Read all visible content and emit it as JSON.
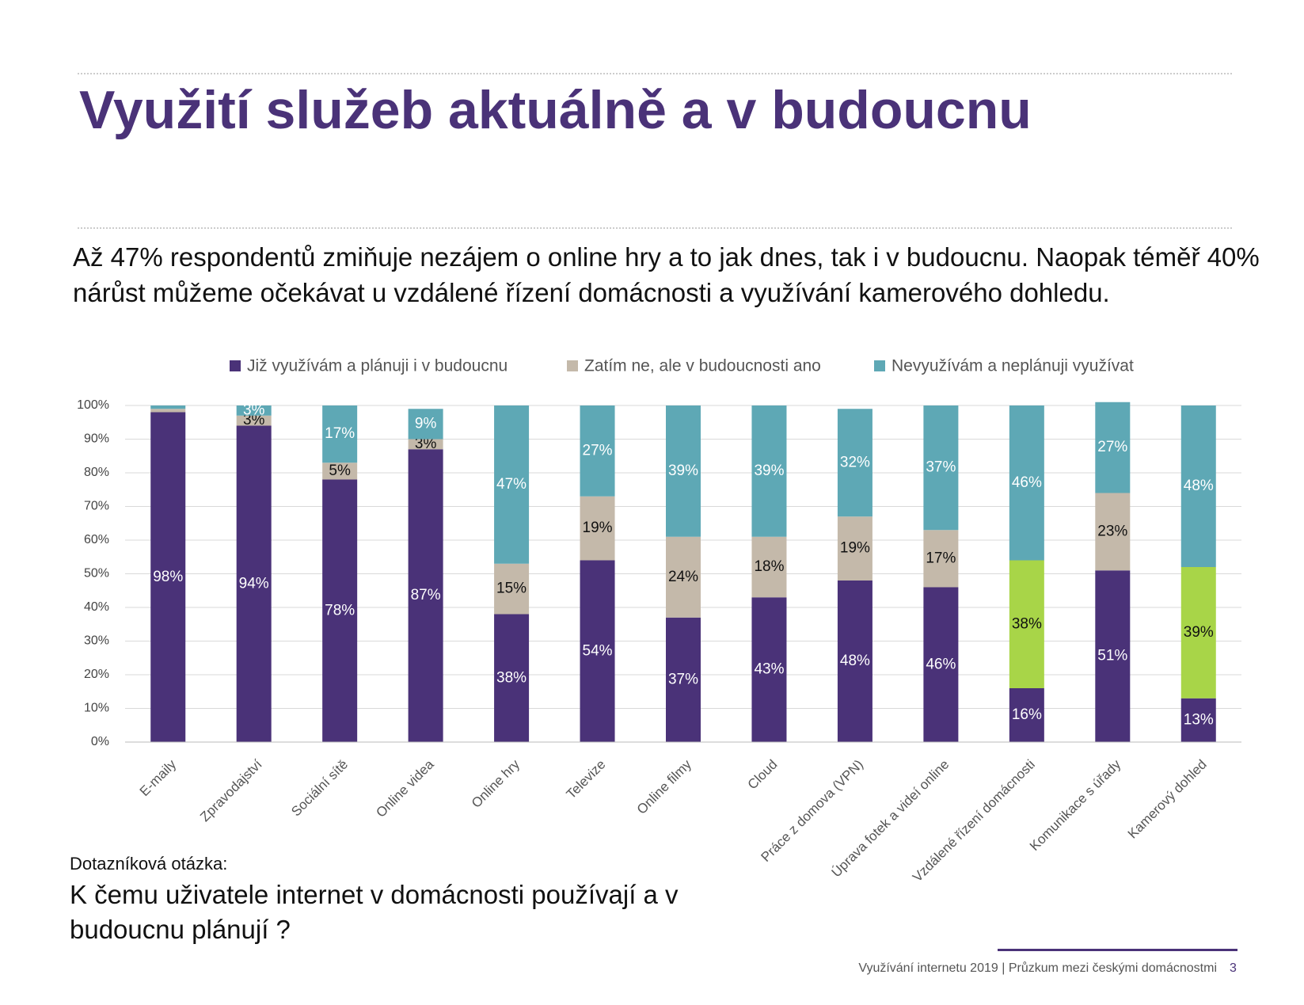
{
  "chart_data": {
    "type": "stacked_bar",
    "title": "Využití služeb aktuálně a v budoucnu",
    "subtitle": "Až 47% respondentů zmiňuje nezájem o online hry a to jak dnes, tak i v budoucnu. Naopak téměř 40% nárůst můžeme očekávat u vzdálené řízení domácnosti a využívání kamerového dohledu.",
    "question_label": "Dotazníková otázka:",
    "question": "K čemu uživatele internet v domácnosti používají a v budoucnu plánují ?",
    "footer": "Využívání internetu 2019 | Průzkum mezi českými domácnostmi",
    "page_number": "3",
    "categories": [
      "E-maily",
      "Zpravodajství",
      "Sociální sítě",
      "Online videa",
      "Online hry",
      "Televize",
      "Online filmy",
      "Cloud",
      "Práce z domova (VPN)",
      "Úprava fotek a videí online",
      "Vzdálené řízení domácnosti",
      "Komunikace s úřady",
      "Kamerový dohled"
    ],
    "series": [
      {
        "name": "Již využívám a plánuji i v budoucnu",
        "color": "#4a3278",
        "values": [
          98,
          94,
          78,
          87,
          38,
          54,
          37,
          43,
          48,
          46,
          16,
          51,
          13
        ],
        "value_labels": [
          "98%",
          "94%",
          "78%",
          "87%",
          "38%",
          "54%",
          "37%",
          "43%",
          "48%",
          "46%",
          "16%",
          "51%",
          "13%"
        ]
      },
      {
        "name": "Zatím ne, ale v budoucnosti ano",
        "color": "#c4b9aa",
        "colors": [
          "#c4b9aa",
          "#c4b9aa",
          "#c4b9aa",
          "#c4b9aa",
          "#c4b9aa",
          "#c4b9aa",
          "#c4b9aa",
          "#c4b9aa",
          "#c4b9aa",
          "#c4b9aa",
          "#a8d548",
          "#c4b9aa",
          "#a8d548"
        ],
        "values": [
          1,
          3,
          5,
          3,
          15,
          19,
          24,
          18,
          19,
          17,
          38,
          23,
          39
        ],
        "value_labels": [
          null,
          "3%",
          "5%",
          "3%",
          "15%",
          "19%",
          "24%",
          "18%",
          "19%",
          "17%",
          "38%",
          "23%",
          "39%"
        ]
      },
      {
        "name": "Nevyužívám a neplánuji využívat",
        "color": "#5ea8b5",
        "values": [
          1,
          3,
          17,
          9,
          47,
          27,
          39,
          39,
          32,
          37,
          46,
          27,
          48
        ],
        "value_labels": [
          null,
          "3%",
          "17%",
          "9%",
          "47%",
          "27%",
          "39%",
          "39%",
          "32%",
          "37%",
          "46%",
          "27%",
          "48%"
        ]
      }
    ],
    "ylim": [
      0,
      100
    ],
    "yticks": [
      {
        "value": 0,
        "label": "0%"
      },
      {
        "value": 10,
        "label": "10%"
      },
      {
        "value": 20,
        "label": "20%"
      },
      {
        "value": 30,
        "label": "30%"
      },
      {
        "value": 40,
        "label": "40%"
      },
      {
        "value": 50,
        "label": "50%"
      },
      {
        "value": 60,
        "label": "60%"
      },
      {
        "value": 70,
        "label": "70%"
      },
      {
        "value": 80,
        "label": "80%"
      },
      {
        "value": 90,
        "label": "90%"
      },
      {
        "value": 100,
        "label": "100%"
      }
    ],
    "grid": true,
    "legend": "top"
  }
}
